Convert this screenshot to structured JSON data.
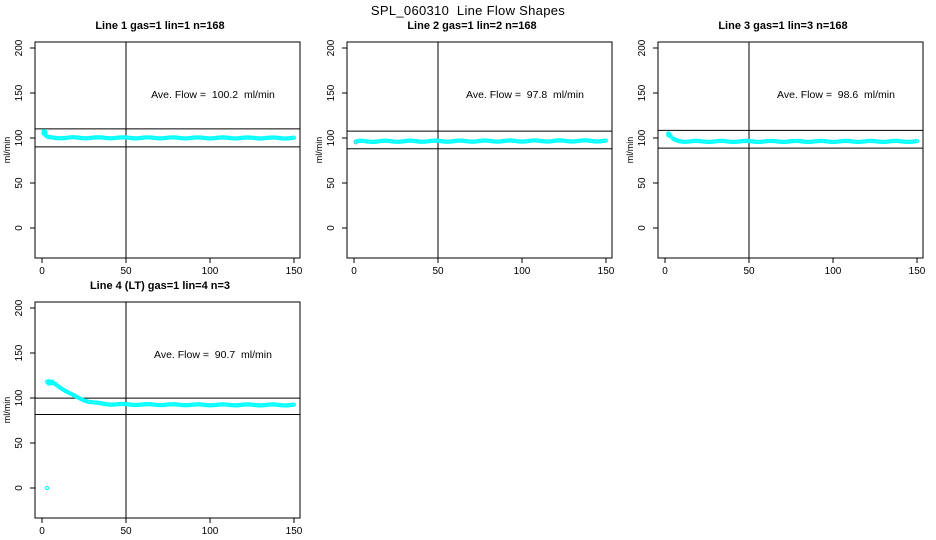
{
  "page": {
    "title": "SPL_060310  Line Flow Shapes",
    "background": "#FFFFFF",
    "axis_color": "#000000",
    "marker_color": "#00FFFF"
  },
  "chart_data": [
    {
      "type": "scatter",
      "title": "Line 1 gas=1 lin=1 n=168",
      "annotation": "Ave. Flow =  100.2  ml/min",
      "ave_flow_ml_min": 100.2,
      "ylabel": "ml/min",
      "xticks": [
        0,
        50,
        100,
        150
      ],
      "yticks": [
        0,
        50,
        100,
        150,
        200
      ],
      "xlim": [
        -4,
        154
      ],
      "ylim": [
        -33,
        207
      ],
      "grid": false,
      "marker_color": "#00FFFF",
      "line_color": "#000000",
      "vline_x": 50,
      "hlines": [
        110.2,
        90.2
      ],
      "x_range": [
        1,
        150
      ],
      "x_step": 1,
      "jitter": 0.55,
      "profile_keypoints": [
        [
          1,
          106.5
        ],
        [
          2,
          103
        ],
        [
          3,
          101
        ],
        [
          5,
          100.3
        ],
        [
          150,
          100.0
        ]
      ],
      "extra_points": [
        [
          1,
          107.5
        ],
        [
          1,
          105
        ],
        [
          2,
          106.5
        ],
        [
          2,
          104.5
        ]
      ],
      "colored_points": [],
      "outliers": []
    },
    {
      "type": "scatter",
      "title": "Line 2 gas=1 lin=2 n=168",
      "annotation": "Ave. Flow =  97.8  ml/min",
      "ave_flow_ml_min": 97.8,
      "ylabel": "ml/min",
      "xticks": [
        0,
        50,
        100,
        150
      ],
      "yticks": [
        0,
        50,
        100,
        150,
        200
      ],
      "xlim": [
        -4,
        154
      ],
      "ylim": [
        -33,
        207
      ],
      "grid": false,
      "marker_color": "#00FFFF",
      "line_color": "#000000",
      "vline_x": 50,
      "hlines": [
        107.6,
        88.0
      ],
      "x_range": [
        1,
        150
      ],
      "x_step": 1,
      "jitter": 0.6,
      "profile_keypoints": [
        [
          1,
          95.5
        ],
        [
          3,
          96.3
        ],
        [
          150,
          96.8
        ]
      ],
      "extra_points": [],
      "colored_points": [
        {
          "x": 1,
          "y": 95.3,
          "color": "#ff5555"
        }
      ],
      "outliers": []
    },
    {
      "type": "scatter",
      "title": "Line 3 gas=1 lin=3 n=168",
      "annotation": "Ave. Flow =  98.6  ml/min",
      "ave_flow_ml_min": 98.6,
      "ylabel": "ml/min",
      "xticks": [
        0,
        50,
        100,
        150
      ],
      "yticks": [
        0,
        50,
        100,
        150,
        200
      ],
      "xlim": [
        -4,
        154
      ],
      "ylim": [
        -33,
        207
      ],
      "grid": false,
      "marker_color": "#00FFFF",
      "line_color": "#000000",
      "vline_x": 50,
      "hlines": [
        108.5,
        88.7
      ],
      "x_range": [
        2,
        150
      ],
      "x_step": 1,
      "jitter": 0.55,
      "profile_keypoints": [
        [
          2,
          104.5
        ],
        [
          3,
          102
        ],
        [
          5,
          98.5
        ],
        [
          8,
          96.8
        ],
        [
          12,
          96.2
        ],
        [
          150,
          96.2
        ]
      ],
      "extra_points": [
        [
          2,
          105
        ],
        [
          2,
          103
        ],
        [
          2.5,
          104.3
        ]
      ],
      "colored_points": [],
      "outliers": []
    },
    {
      "type": "scatter",
      "title": "Line 4 (LT) gas=1 lin=4 n=3",
      "annotation": "Ave. Flow =  90.7  ml/min",
      "ave_flow_ml_min": 90.7,
      "ylabel": "ml/min",
      "xticks": [
        0,
        50,
        100,
        150
      ],
      "yticks": [
        0,
        50,
        100,
        150,
        200
      ],
      "xlim": [
        -4,
        154
      ],
      "ylim": [
        -33,
        207
      ],
      "grid": false,
      "marker_color": "#00FFFF",
      "line_color": "#000000",
      "vline_x": 50,
      "hlines": [
        99.8,
        81.6
      ],
      "x_range": [
        3,
        150
      ],
      "x_step": 1,
      "jitter": 0.5,
      "profile_keypoints": [
        [
          3,
          117.5
        ],
        [
          5,
          117.5
        ],
        [
          8,
          115.5
        ],
        [
          12,
          110.5
        ],
        [
          16,
          105.5
        ],
        [
          20,
          101.5
        ],
        [
          24,
          98.5
        ],
        [
          28,
          96
        ],
        [
          32,
          94.5
        ],
        [
          36,
          93.6
        ],
        [
          40,
          93.2
        ],
        [
          46,
          92.9
        ],
        [
          60,
          92.7
        ],
        [
          100,
          92.4
        ],
        [
          150,
          92.3
        ]
      ],
      "extra_points": [
        [
          4,
          118.5
        ],
        [
          5,
          116.3
        ],
        [
          6,
          117.2
        ],
        [
          7,
          116.5
        ],
        [
          4,
          116.2
        ],
        [
          6,
          118.3
        ]
      ],
      "colored_points": [],
      "outliers": [
        [
          3,
          0
        ]
      ]
    }
  ]
}
